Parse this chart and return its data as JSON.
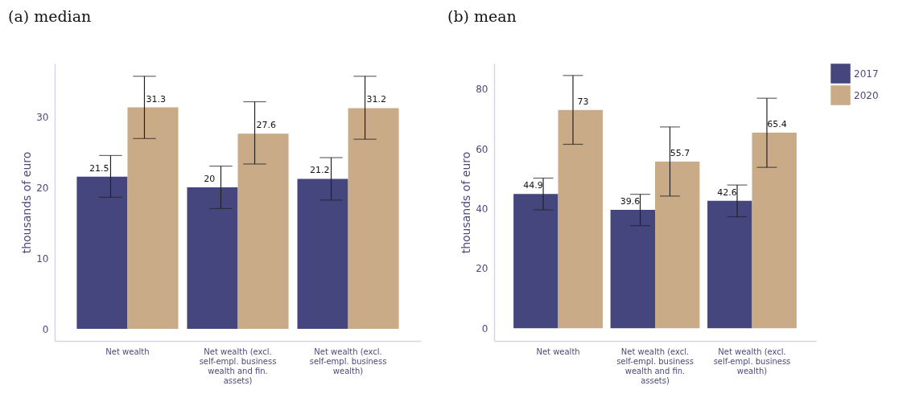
{
  "chart_data": [
    {
      "type": "bar",
      "title": "(a) median",
      "ylabel": "thousands of euro",
      "categories": [
        "Net wealth",
        "Net wealth (excl. self-empl. business wealth and fin. assets)",
        "Net wealth (excl. self-empl. business wealth)"
      ],
      "series": [
        {
          "color": "#45467e",
          "values": [
            21.5,
            20,
            21.2
          ],
          "errors": [
            [
              18.6,
              24.5
            ],
            [
              17.0,
              23.0
            ],
            [
              18.2,
              24.2
            ]
          ]
        },
        {
          "color": "#c9ab87",
          "values": [
            31.3,
            27.6,
            31.2
          ],
          "errors": [
            [
              26.9,
              35.7
            ],
            [
              23.3,
              32.1
            ],
            [
              26.8,
              35.7
            ]
          ]
        }
      ],
      "ylim": [
        -1.7,
        37.5
      ],
      "yticks": [
        0,
        10,
        20,
        30
      ],
      "data_labels": true,
      "grid": false,
      "legend": false
    },
    {
      "type": "bar",
      "title": "(b) mean",
      "ylabel": "thousands of euro",
      "categories": [
        "Net wealth",
        "Net wealth (excl. self-empl. business wealth and fin. assets)",
        "Net wealth (excl. self-empl. business wealth)"
      ],
      "series": [
        {
          "name": "2017",
          "color": "#45467e",
          "values": [
            44.9,
            39.6,
            42.6
          ],
          "errors": [
            [
              39.6,
              50.2
            ],
            [
              34.3,
              44.8
            ],
            [
              37.3,
              47.9
            ]
          ]
        },
        {
          "name": "2020",
          "color": "#c9ab87",
          "values": [
            73,
            55.7,
            65.4
          ],
          "errors": [
            [
              61.5,
              84.5
            ],
            [
              44.2,
              67.3
            ],
            [
              53.8,
              76.9
            ]
          ]
        }
      ],
      "ylim": [
        -4.2,
        88.5
      ],
      "yticks": [
        0,
        20,
        40,
        60,
        80
      ],
      "data_labels": true,
      "grid": false,
      "legend": "right"
    }
  ]
}
